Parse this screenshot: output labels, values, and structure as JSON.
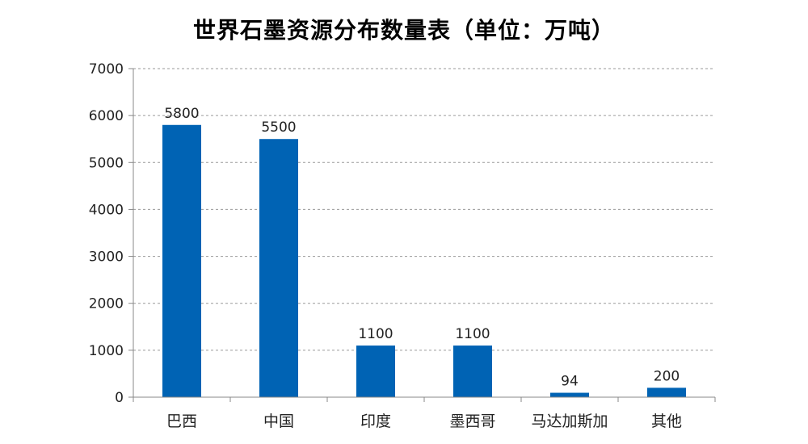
{
  "chart_data": {
    "type": "bar",
    "title": "世界石墨资源分布数量表（单位：万吨）",
    "categories": [
      "巴西",
      "中国",
      "印度",
      "墨西哥",
      "马达加斯加",
      "其他"
    ],
    "values": [
      5800,
      5500,
      1100,
      1100,
      94,
      200
    ],
    "data_labels": [
      "5800",
      "5500",
      "1100",
      "1100",
      "94",
      "200"
    ],
    "ylim": [
      0,
      7000
    ],
    "yticks": [
      0,
      1000,
      2000,
      3000,
      4000,
      5000,
      6000,
      7000
    ],
    "grid": true,
    "grid_style": "dashed",
    "legend": "none",
    "bar_color": "#0063B4",
    "xlabel": "",
    "ylabel": ""
  }
}
